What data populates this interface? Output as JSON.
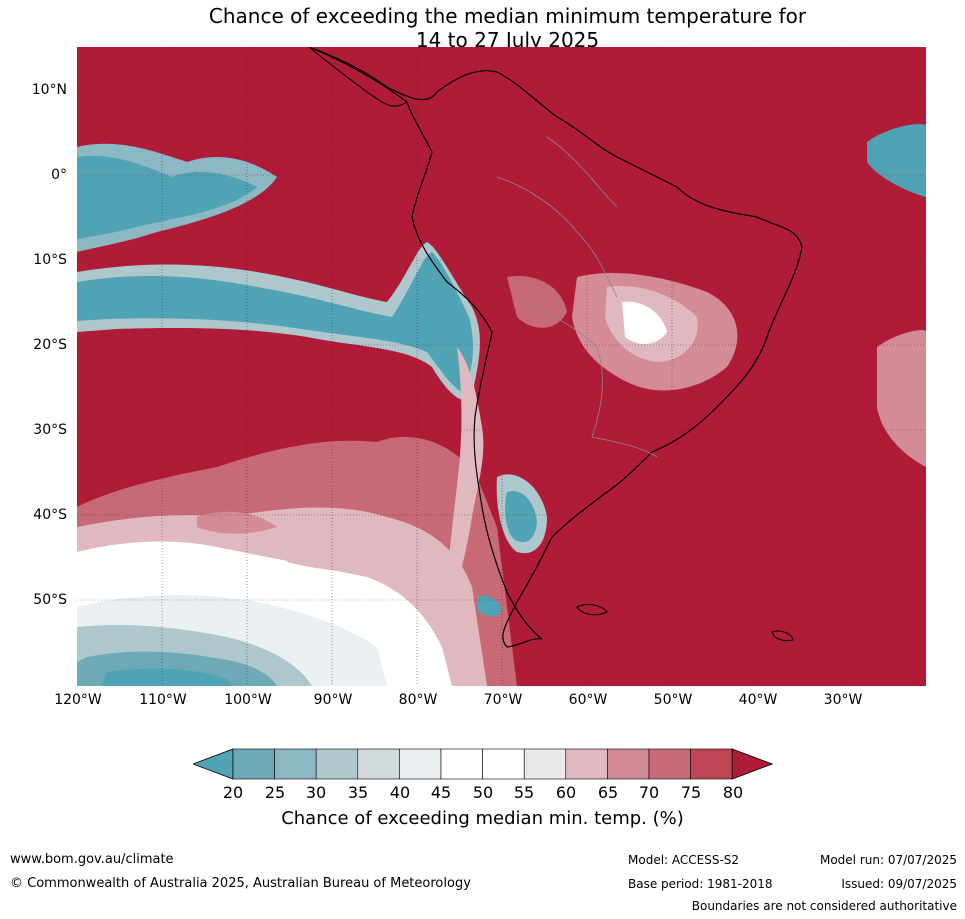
{
  "title": {
    "line1": "Chance of exceeding the median minimum temperature for",
    "line2": "14 to 27 July 2025"
  },
  "map": {
    "lat_labels": [
      "10°N",
      "0°",
      "10°S",
      "20°S",
      "30°S",
      "40°S",
      "50°S"
    ],
    "lon_labels": [
      "120°W",
      "110°W",
      "100°W",
      "90°W",
      "80°W",
      "70°W",
      "60°W",
      "50°W",
      "40°W",
      "30°W"
    ]
  },
  "colorbar": {
    "ticks": [
      "20",
      "25",
      "30",
      "35",
      "40",
      "45",
      "50",
      "55",
      "60",
      "65",
      "70",
      "75",
      "80"
    ],
    "colors": [
      "#4fa3b4",
      "#6eaab6",
      "#8cb8c4",
      "#adc7cc",
      "#d2dadc",
      "#eaf0f2",
      "#ffffff",
      "#ffffff",
      "#e8e8ea",
      "#e0b8bf",
      "#d38b95",
      "#c86a76",
      "#bf4455",
      "#b01c38"
    ],
    "label": "Chance of exceeding median min. temp. (%)"
  },
  "footer": {
    "website": "www.bom.gov.au/climate",
    "copyright": "© Commonwealth of Australia 2025, Australian Bureau of Meteorology",
    "model": "Model: ACCESS-S2",
    "base_period": "Base period: 1981-2018",
    "model_run": "Model run: 07/07/2025",
    "issued": "Issued: 09/07/2025",
    "disclaimer": "Boundaries are not considered authoritative"
  }
}
